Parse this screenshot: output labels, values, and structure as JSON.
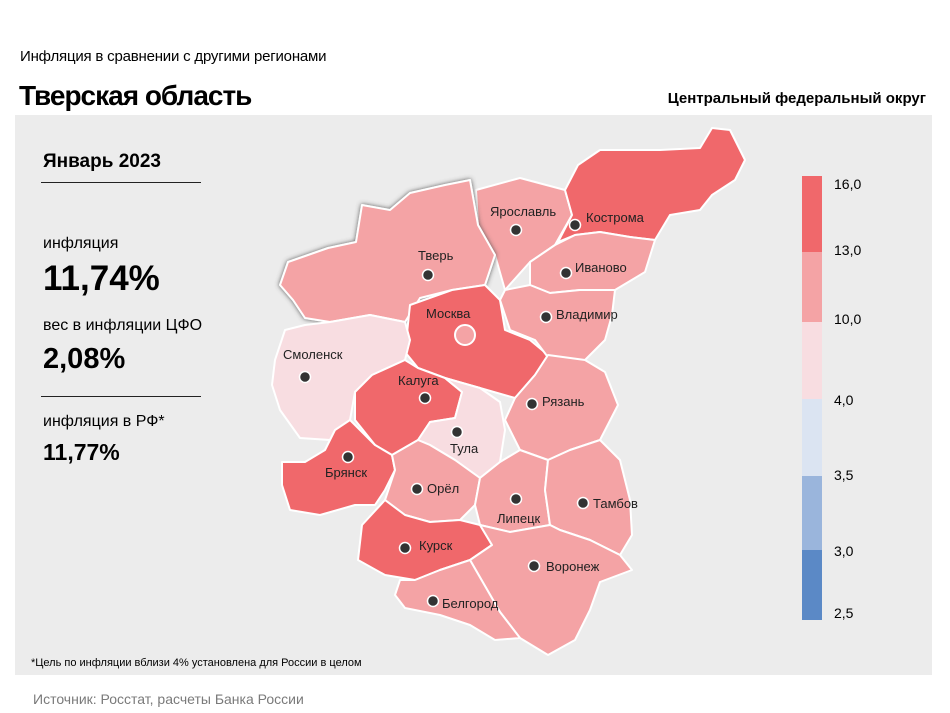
{
  "header": {
    "subtitle": "Инфляция  в сравнении  с другими  регионами",
    "title": "Тверская область",
    "district": "Центральный федеральный округ"
  },
  "stats": {
    "month": "Январь 2023",
    "inflation_label": "инфляция",
    "inflation_value": "11,74%",
    "weight_label": "вес в инфляции  ЦФО",
    "weight_value": "2,08%",
    "rf_label": "инфляция  в РФ*",
    "rf_value": "11,77%"
  },
  "footnote": "*Цель по инфляции вблизи 4% установлена для России в целом",
  "source": "Источник: Росстат, расчеты Банка России",
  "legend": {
    "ticks": [
      "16,0",
      "13,0",
      "10,0",
      "4,0",
      "3,5",
      "3,0",
      "2,5"
    ],
    "colors": [
      "#f0686b",
      "#f4a3a5",
      "#f8dde1",
      "#dbe4f2",
      "#9ab5dc",
      "#5b89c6"
    ]
  },
  "map": {
    "highlighted_region": "Тверь",
    "regions": [
      {
        "name": "Ярославль",
        "color": "#f4a3a5"
      },
      {
        "name": "Кострома",
        "color": "#f0686b"
      },
      {
        "name": "Тверь",
        "color": "#f4a3a5"
      },
      {
        "name": "Иваново",
        "color": "#f4a3a5"
      },
      {
        "name": "Москва",
        "color": "#f0686b"
      },
      {
        "name": "Владимир",
        "color": "#f4a3a5"
      },
      {
        "name": "Смоленск",
        "color": "#f8dde1"
      },
      {
        "name": "Калуга",
        "color": "#f0686b"
      },
      {
        "name": "Рязань",
        "color": "#f4a3a5"
      },
      {
        "name": "Тула",
        "color": "#f8dde1"
      },
      {
        "name": "Брянск",
        "color": "#f0686b"
      },
      {
        "name": "Орёл",
        "color": "#f4a3a5"
      },
      {
        "name": "Липецк",
        "color": "#f4a3a5"
      },
      {
        "name": "Тамбов",
        "color": "#f4a3a5"
      },
      {
        "name": "Курск",
        "color": "#f0686b"
      },
      {
        "name": "Воронеж",
        "color": "#f4a3a5"
      },
      {
        "name": "Белгород",
        "color": "#f4a3a5"
      }
    ]
  }
}
